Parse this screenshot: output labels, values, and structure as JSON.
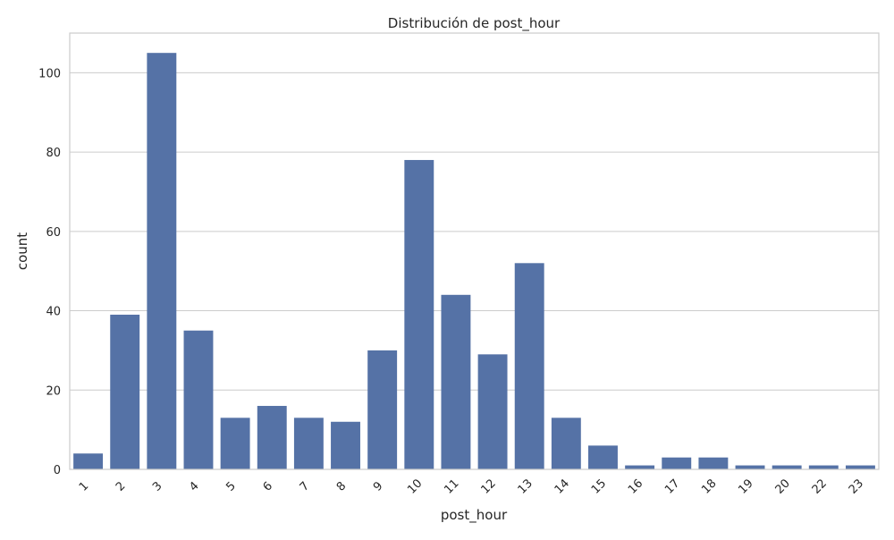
{
  "chart_data": {
    "type": "bar",
    "title": "Distribución de post_hour",
    "xlabel": "post_hour",
    "ylabel": "count",
    "categories": [
      "1",
      "2",
      "3",
      "4",
      "5",
      "6",
      "7",
      "8",
      "9",
      "10",
      "11",
      "12",
      "13",
      "14",
      "15",
      "16",
      "17",
      "18",
      "19",
      "20",
      "22",
      "23"
    ],
    "values": [
      4,
      39,
      105,
      35,
      13,
      16,
      13,
      12,
      30,
      78,
      44,
      29,
      52,
      13,
      6,
      1,
      3,
      3,
      1,
      1,
      1,
      1
    ],
    "ylim": [
      0,
      110
    ],
    "yticks": [
      0,
      20,
      40,
      60,
      80,
      100
    ],
    "grid": "horizontal",
    "bar_color": "#5572a6",
    "grid_color": "#cccccc"
  }
}
